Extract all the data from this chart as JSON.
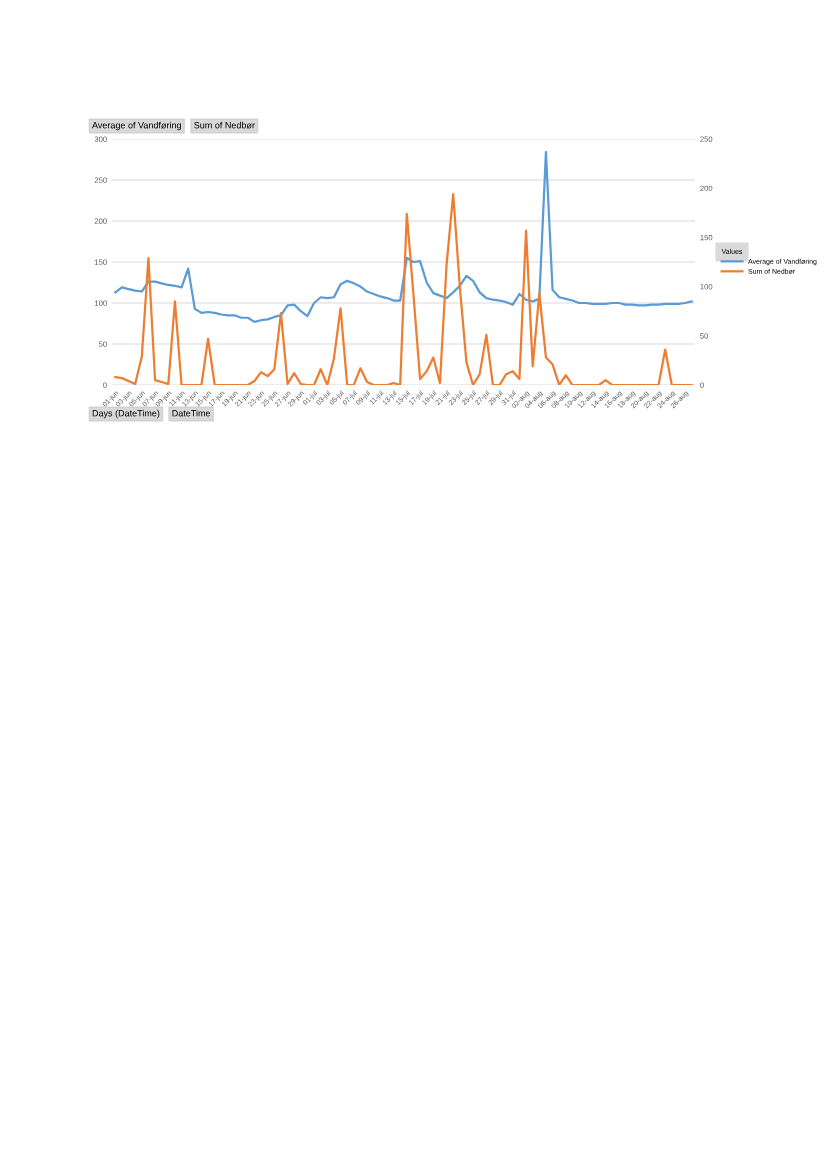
{
  "chart_data": {
    "type": "line",
    "categories": [
      "01-jun",
      null,
      "03-jun",
      null,
      "05-jun",
      null,
      "07-jun",
      null,
      "09-jun",
      null,
      "11-jun",
      null,
      "13-jun",
      null,
      "15-jun",
      null,
      "17-jun",
      null,
      "19-jun",
      null,
      "21-jun",
      null,
      "23-jun",
      null,
      "25-jun",
      null,
      "27-jun",
      null,
      "29-jun",
      null,
      "01-jul",
      null,
      "03-jul",
      null,
      "05-jul",
      null,
      "07-jul",
      null,
      "09-jul",
      null,
      "11-jul",
      null,
      "13-jul",
      null,
      "15-jul",
      null,
      "17-jul",
      null,
      "19-jul",
      null,
      "21-jul",
      null,
      "23-jul",
      null,
      "25-jul",
      null,
      "27-jul",
      null,
      "29-jul",
      null,
      "31-jul",
      null,
      "02-aug",
      null,
      "04-aug",
      null,
      "06-aug",
      null,
      "08-aug",
      null,
      "10-aug",
      null,
      "12-aug",
      null,
      "14-aug",
      null,
      "16-aug",
      null,
      "18-aug",
      null,
      "20-aug",
      null,
      "22-aug",
      null,
      "24-aug",
      null,
      "26-aug",
      null
    ],
    "series": [
      {
        "name": "Average of Vandføring",
        "color": "#5b9bd5",
        "values": [
          113,
          119,
          117,
          115,
          114,
          126,
          126,
          124,
          122,
          121,
          119,
          142,
          93,
          88,
          89,
          88,
          86,
          85,
          85,
          82,
          82,
          77,
          79,
          80,
          83,
          85,
          97,
          98,
          90,
          84,
          100,
          107,
          106,
          107,
          123,
          127,
          124,
          120,
          114,
          111,
          108,
          106,
          103,
          103,
          155,
          150,
          151,
          125,
          112,
          109,
          106,
          113,
          121,
          133,
          127,
          113,
          106,
          104,
          103,
          101,
          98,
          111,
          104,
          102,
          105,
          284,
          116,
          107,
          105,
          103,
          100,
          100,
          99,
          99,
          99,
          100,
          100,
          98,
          98,
          97,
          97,
          98,
          98,
          99,
          99,
          99,
          100,
          102
        ]
      },
      {
        "name": "Sum of Nedbør",
        "color": "#ed7d31",
        "axis": "y2",
        "values": [
          8,
          7,
          4,
          1,
          29,
          129,
          5,
          3,
          1,
          85,
          0,
          0,
          0,
          0,
          47,
          0,
          0,
          0,
          0,
          0,
          0,
          4,
          13,
          9,
          16,
          73,
          1,
          12,
          1,
          0,
          0,
          16,
          0,
          27,
          78,
          0,
          0,
          17,
          3,
          0,
          0,
          0,
          2,
          0,
          174,
          92,
          6,
          14,
          28,
          2,
          122,
          194,
          100,
          23,
          0,
          11,
          51,
          0,
          0,
          11,
          14,
          6,
          157,
          19,
          93,
          28,
          21,
          0,
          10,
          0,
          0,
          0,
          0,
          0,
          5,
          0,
          0,
          0,
          0,
          0,
          0,
          0,
          0,
          36,
          0,
          0,
          0,
          0
        ]
      }
    ],
    "ylim": [
      0,
      300
    ],
    "yticks": [
      0,
      50,
      100,
      150,
      200,
      250,
      300
    ],
    "y2lim": [
      0,
      250
    ],
    "y2ticks": [
      0,
      50,
      100,
      150,
      200,
      250
    ],
    "grid": "y",
    "legend": "right",
    "legend_title": "Values",
    "line_style": "solid",
    "marker": "none",
    "annotations": [
      "Average of Vandføring",
      "Sum of Nedbør",
      "Days (DateTime)",
      "DateTime"
    ]
  }
}
